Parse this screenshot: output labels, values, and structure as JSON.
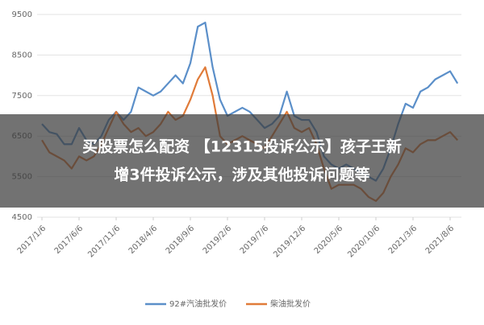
{
  "chart_data": {
    "type": "line",
    "categories": [
      "2017/1/6",
      null,
      null,
      null,
      null,
      "2017/6/6",
      null,
      null,
      null,
      null,
      "2017/11/6",
      null,
      null,
      null,
      null,
      "2018/4/6",
      null,
      null,
      null,
      null,
      "2018/9/6",
      null,
      null,
      null,
      null,
      "2019/2/6",
      null,
      null,
      null,
      null,
      "2019/7/6",
      null,
      null,
      null,
      null,
      "2019/12/6",
      null,
      null,
      null,
      null,
      "2020/5/6",
      null,
      null,
      null,
      null,
      "2020/10/6",
      null,
      null,
      null,
      null,
      "2021/3/6",
      null,
      null,
      null,
      null,
      "2021/8/6",
      null
    ],
    "series": [
      {
        "name": "92#汽油批发价",
        "color": "#5b8fc9",
        "values": [
          6800,
          6600,
          6550,
          6300,
          6300,
          6700,
          6400,
          6300,
          6500,
          6900,
          7100,
          6900,
          7100,
          7700,
          7600,
          7500,
          7600,
          7800,
          8000,
          7800,
          8300,
          9200,
          9300,
          8200,
          7400,
          7000,
          7100,
          7200,
          7100,
          6900,
          6700,
          6800,
          7000,
          7600,
          7000,
          6900,
          6900,
          6600,
          6000,
          5800,
          5700,
          5800,
          5700,
          5600,
          5500,
          5400,
          5700,
          6200,
          6800,
          7300,
          7200,
          7600,
          7700,
          7900,
          8000,
          8100,
          7800
        ]
      },
      {
        "name": "柴油批发价",
        "color": "#e07b39",
        "values": [
          6400,
          6100,
          6000,
          5900,
          5700,
          6000,
          5900,
          6000,
          6300,
          6700,
          7100,
          6800,
          6600,
          6700,
          6500,
          6600,
          6800,
          7100,
          6900,
          7000,
          7400,
          7900,
          8200,
          7500,
          6500,
          6300,
          6400,
          6500,
          6400,
          6300,
          6200,
          6500,
          6800,
          7100,
          6700,
          6600,
          6700,
          6300,
          5700,
          5200,
          5300,
          5300,
          5300,
          5200,
          5000,
          4900,
          5100,
          5500,
          5800,
          6200,
          6100,
          6300,
          6400,
          6400,
          6500,
          6600,
          6400
        ]
      }
    ],
    "ylim": [
      4500,
      9500
    ],
    "yticks": [
      4500,
      5500,
      6500,
      7500,
      8500,
      9500
    ],
    "grid": true,
    "overlay_title": [
      "买股票怎么配资 【12315投诉公示】孩子王新",
      "增3件投诉公示，涉及其他投诉问题等"
    ]
  }
}
